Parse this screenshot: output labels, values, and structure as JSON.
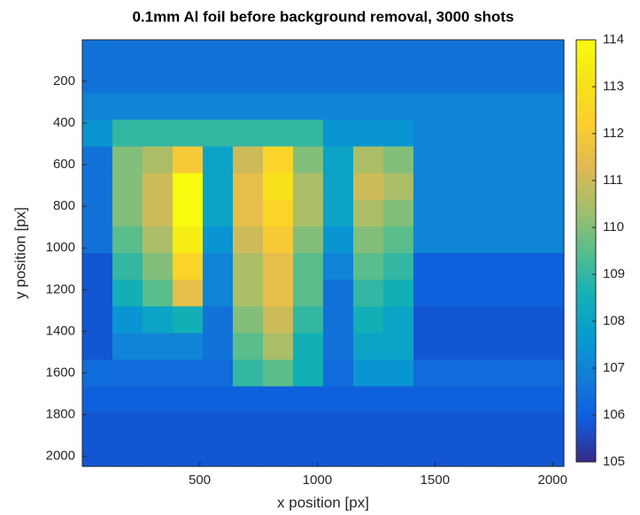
{
  "chart_data": {
    "type": "heatmap",
    "title": "0.1mm Al foil before background removal, 3000 shots",
    "xlabel": "x position [px]",
    "ylabel": "y position [px]",
    "xlim": [
      1,
      2048
    ],
    "ylim": [
      1,
      2048
    ],
    "ydir": "reverse",
    "xticks": [
      500,
      1000,
      1500,
      2000
    ],
    "yticks": [
      200,
      400,
      600,
      800,
      1000,
      1200,
      1400,
      1600,
      1800,
      2000
    ],
    "colormap": "parula",
    "clim": [
      105,
      114
    ],
    "cticks": [
      105,
      106,
      107,
      108,
      109,
      110,
      111,
      112,
      113,
      114
    ],
    "z": [
      [
        106.5,
        106.5,
        106.5,
        106.5,
        106.5,
        106.5,
        106.5,
        106.5,
        106.5,
        106.5,
        106.5,
        106.5,
        106.5,
        106.5,
        106.5,
        106.5
      ],
      [
        106.5,
        106.5,
        106.5,
        106.5,
        106.5,
        106.5,
        106.5,
        106.5,
        106.5,
        106.5,
        106.5,
        106.5,
        106.5,
        106.5,
        106.5,
        106.5
      ],
      [
        107,
        107,
        107,
        107,
        107,
        107,
        107,
        107,
        107,
        107,
        107,
        107,
        107,
        107,
        107,
        107
      ],
      [
        107.5,
        109,
        109,
        109,
        109,
        109,
        109,
        109,
        107.5,
        107.5,
        107.5,
        107,
        107,
        107,
        107,
        107
      ],
      [
        106.5,
        110,
        110.5,
        112,
        108,
        111,
        112.5,
        110,
        108,
        110.5,
        110,
        107,
        107,
        107,
        107,
        107
      ],
      [
        106.5,
        110,
        111,
        114,
        108,
        111.5,
        113,
        110.5,
        108,
        111,
        110.5,
        107,
        107,
        107,
        107,
        107
      ],
      [
        106.5,
        110,
        111,
        114,
        108,
        111.5,
        112.5,
        110.5,
        108,
        110.5,
        110,
        107,
        107,
        107,
        107,
        107
      ],
      [
        106.5,
        109.5,
        110.5,
        113.5,
        107.5,
        111,
        112,
        110,
        107.5,
        110,
        109.5,
        107,
        107,
        107,
        107,
        107
      ],
      [
        105.8,
        109,
        110,
        112.5,
        107,
        110.5,
        111.5,
        109.5,
        107,
        109.5,
        109,
        106,
        106,
        106,
        106,
        106
      ],
      [
        105.8,
        108.5,
        109.5,
        111.5,
        107,
        110.5,
        111.5,
        109.5,
        106.5,
        109,
        108.5,
        106,
        106,
        106,
        106,
        106
      ],
      [
        105.8,
        107.5,
        108,
        108.5,
        106.5,
        110,
        111,
        109,
        106.5,
        108.5,
        108,
        105.8,
        105.8,
        105.8,
        105.8,
        105.8
      ],
      [
        105.8,
        107,
        107,
        107,
        106.5,
        109.5,
        110.5,
        108.5,
        106.5,
        108,
        108,
        105.8,
        105.8,
        105.8,
        105.8,
        105.8
      ],
      [
        106.3,
        106.3,
        106.3,
        106.3,
        106.3,
        109,
        109.5,
        108.5,
        106.3,
        107.5,
        107.5,
        106.3,
        106.3,
        106.3,
        106.3,
        106.3
      ],
      [
        106,
        106,
        106,
        106,
        106,
        106,
        106,
        106,
        106,
        106,
        106,
        106,
        106,
        106,
        106,
        106
      ],
      [
        105.8,
        105.8,
        105.8,
        105.8,
        105.8,
        105.8,
        105.8,
        105.8,
        105.8,
        105.8,
        105.8,
        105.8,
        105.8,
        105.8,
        105.8,
        105.8
      ],
      [
        105.8,
        105.8,
        105.8,
        105.8,
        105.8,
        105.8,
        105.8,
        105.8,
        105.8,
        105.8,
        105.8,
        105.8,
        105.8,
        105.8,
        105.8,
        105.8
      ]
    ]
  }
}
